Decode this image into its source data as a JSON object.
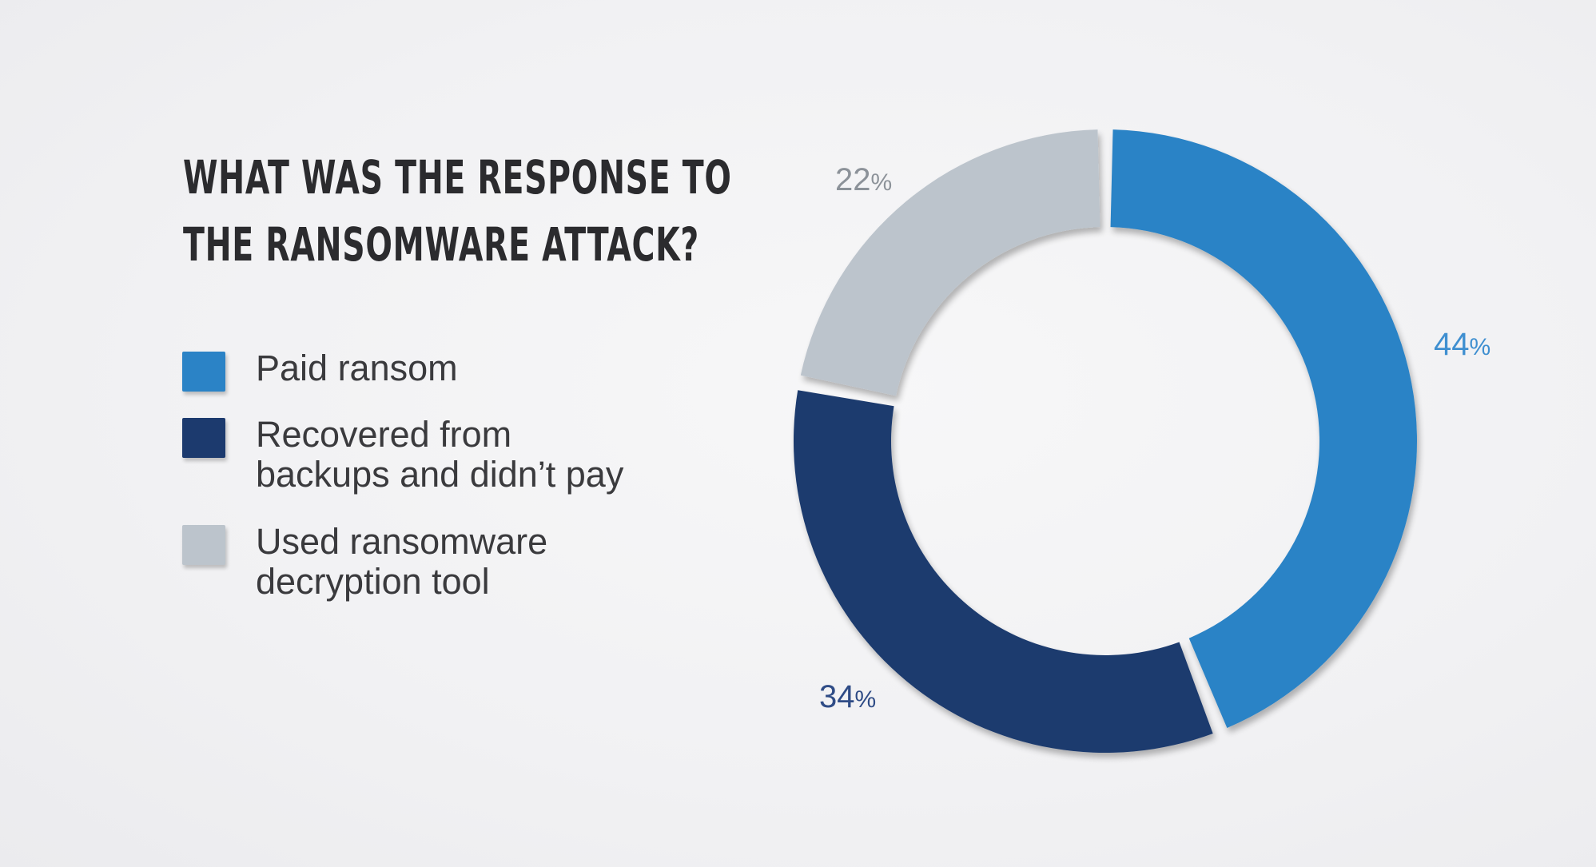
{
  "chart_data": {
    "type": "pie",
    "variant": "donut",
    "title_lines": [
      "WHAT WAS THE RESPONSE TO",
      "THE RANSOMWARE ATTACK?"
    ],
    "slices": [
      {
        "label_lines": [
          "Paid ransom"
        ],
        "value": 44,
        "value_label": "44",
        "unit": "%",
        "color": "#2b83c6",
        "label_color": "#3f8fd0"
      },
      {
        "label_lines": [
          "Recovered from",
          "backups and didn’t pay"
        ],
        "value": 34,
        "value_label": "34",
        "unit": "%",
        "color": "#1c3a6e",
        "label_color": "#2f4c86"
      },
      {
        "label_lines": [
          "Used ransomware",
          "decryption tool"
        ],
        "value": 22,
        "value_label": "22",
        "unit": "%",
        "color": "#bcc4cc",
        "label_color": "#8c9299"
      }
    ],
    "legend_position": "left"
  }
}
